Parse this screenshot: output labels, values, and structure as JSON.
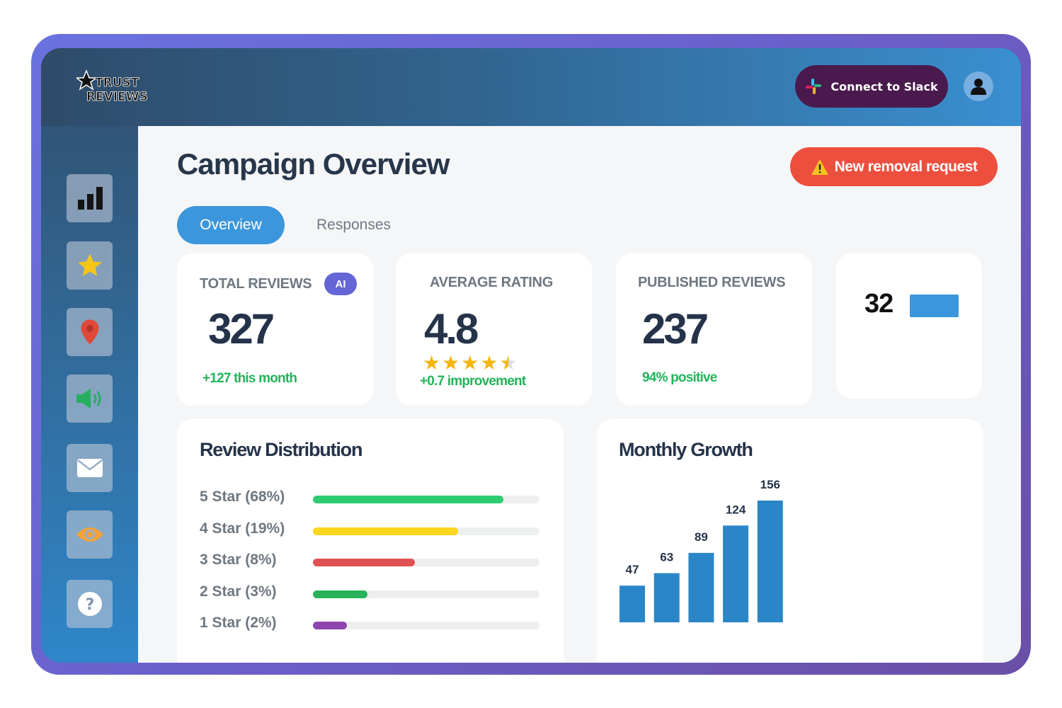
{
  "brand": {
    "logo_text_top": "TRUST",
    "logo_text_bottom": "REVIEWS"
  },
  "header": {
    "slack_label": "Connect to Slack"
  },
  "page": {
    "title": "Campaign Overview",
    "removal_label": "New removal request"
  },
  "tabs": [
    {
      "label": "Overview",
      "active": true
    },
    {
      "label": "Responses",
      "active": false
    }
  ],
  "sidebar": {
    "items": [
      {
        "icon": "bar-chart-icon"
      },
      {
        "icon": "star-icon"
      },
      {
        "icon": "map-pin-icon"
      },
      {
        "icon": "megaphone-icon"
      },
      {
        "icon": "mail-icon"
      },
      {
        "icon": "eye-icon"
      },
      {
        "icon": "help-icon"
      }
    ]
  },
  "stats": {
    "total": {
      "label": "TOTAL REVIEWS",
      "badge": "AI",
      "value": "327",
      "sub": "+127 this month"
    },
    "rating": {
      "label": "AVERAGE RATING",
      "value": "4.8",
      "stars": 4.5,
      "sub": "+0.7 improvement"
    },
    "published": {
      "label": "PUBLISHED REVIEWS",
      "value": "237",
      "sub": "94% positive"
    },
    "extra": {
      "value": "32"
    }
  },
  "distribution": {
    "title": "Review Distribution",
    "rows": [
      {
        "label": "5 Star (68%)",
        "value": 0.84,
        "color": "#2ecc71"
      },
      {
        "label": "4 Star (19%)",
        "value": 0.64,
        "color": "#fdd71e"
      },
      {
        "label": "3 Star (8%)",
        "value": 0.45,
        "color": "#e05252"
      },
      {
        "label": "2 Star (3%)",
        "value": 0.24,
        "color": "#27b35a"
      },
      {
        "label": "1 Star (2%)",
        "value": 0.15,
        "color": "#8e44ad"
      }
    ]
  },
  "growth": {
    "title": "Monthly Growth"
  },
  "chart_data": {
    "type": "bar",
    "categories": [
      "",
      "",
      "",
      "",
      ""
    ],
    "values": [
      47,
      63,
      89,
      124,
      156
    ],
    "ylim": [
      0,
      156
    ],
    "grid": false,
    "color": "#2b86c8"
  },
  "colors": {
    "accent": "#3b96dc",
    "danger": "#ec4f3e",
    "positive": "#22b45a",
    "slack": "#4a1a4e",
    "ai_badge": "#6466d6"
  }
}
